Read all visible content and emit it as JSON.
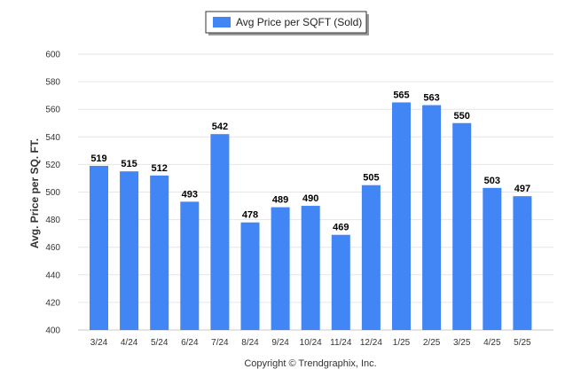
{
  "chart_data": {
    "type": "bar",
    "categories": [
      "3/24",
      "4/24",
      "5/24",
      "6/24",
      "7/24",
      "8/24",
      "9/24",
      "10/24",
      "11/24",
      "12/24",
      "1/25",
      "2/25",
      "3/25",
      "4/25",
      "5/25"
    ],
    "series": [
      {
        "name": "Avg Price per SQFT (Sold)",
        "values": [
          519,
          515,
          512,
          493,
          542,
          478,
          489,
          490,
          469,
          505,
          565,
          563,
          550,
          503,
          497
        ],
        "color": "#4285f4"
      }
    ],
    "ylabel": "Avg. Price per SQ. FT.",
    "ylim": [
      400,
      600
    ],
    "yticks": [
      400,
      420,
      440,
      460,
      480,
      500,
      520,
      540,
      560,
      580,
      600
    ],
    "grid": true,
    "legend": "top-center"
  },
  "footer": {
    "copyright": "Copyright © Trendgraphix, Inc."
  }
}
